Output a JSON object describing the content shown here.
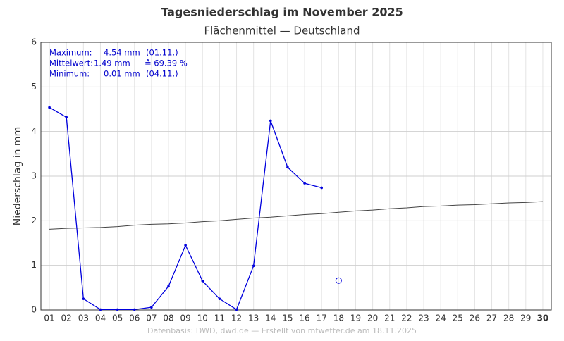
{
  "chart_data": {
    "type": "line",
    "title": "Tagesniederschlag im November 2025",
    "subtitle": "Flächenmittel — Deutschland",
    "y_label": "Niederschlag in mm",
    "footer": "Datenbasis: DWD, dwd.de — Erstellt von mtwetter.de am 18.11.2025",
    "annotations": [
      {
        "label": "Maximum:",
        "value": "4.54 mm",
        "extra": "(01.11.)"
      },
      {
        "label": "Mittelwert:",
        "value": "1.49 mm",
        "extra": "≙ 69.39 %"
      },
      {
        "label": "Minimum:",
        "value": "0.01 mm",
        "extra": "(04.11.)"
      }
    ],
    "categories": [
      "01",
      "02",
      "03",
      "04",
      "05",
      "06",
      "07",
      "08",
      "09",
      "10",
      "11",
      "12",
      "13",
      "14",
      "15",
      "16",
      "17",
      "18",
      "19",
      "20",
      "21",
      "22",
      "23",
      "24",
      "25",
      "26",
      "27",
      "28",
      "29",
      "30"
    ],
    "series": [
      {
        "color": "#0000dd",
        "style": "line-points",
        "values": [
          4.54,
          4.32,
          0.25,
          0.01,
          0.01,
          0.01,
          0.06,
          0.53,
          1.45,
          0.65,
          0.25,
          0.01,
          0.99,
          4.24,
          3.2,
          2.84,
          2.74,
          null,
          null,
          null,
          null,
          null,
          null,
          null,
          null,
          null,
          null,
          null,
          null,
          null
        ]
      },
      {
        "color": "#444444",
        "style": "line",
        "values": [
          1.81,
          1.83,
          1.84,
          1.85,
          1.87,
          1.9,
          1.92,
          1.93,
          1.95,
          1.98,
          2.0,
          2.03,
          2.06,
          2.08,
          2.11,
          2.14,
          2.16,
          2.19,
          2.22,
          2.24,
          2.27,
          2.29,
          2.32,
          2.33,
          2.35,
          2.36,
          2.38,
          2.4,
          2.41,
          2.43
        ]
      },
      {
        "color": "#0000dd",
        "style": "circle",
        "values": [
          null,
          null,
          null,
          null,
          null,
          null,
          null,
          null,
          null,
          null,
          null,
          null,
          null,
          null,
          null,
          null,
          null,
          0.66,
          null,
          null,
          null,
          null,
          null,
          null,
          null,
          null,
          null,
          null,
          null,
          null
        ]
      }
    ],
    "ylim": [
      0,
      6
    ],
    "yticks": [
      0,
      1,
      2,
      3,
      4,
      5,
      6
    ],
    "grid": true
  }
}
